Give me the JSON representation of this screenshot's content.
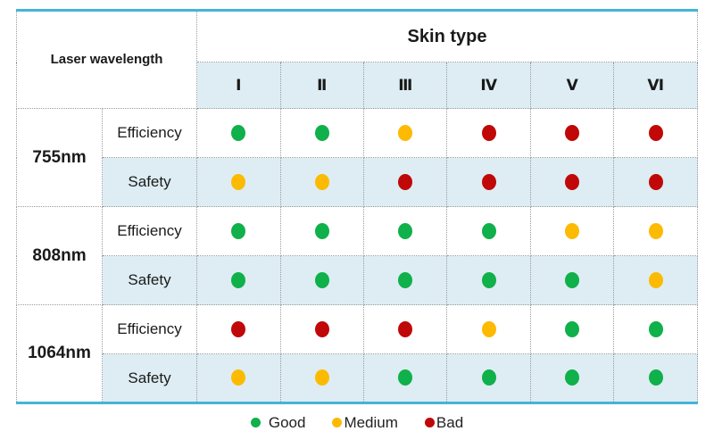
{
  "colors": {
    "good": "#10b04a",
    "medium": "#fcba02",
    "bad": "#c00808",
    "band_bg": "#ddedf3",
    "accent_border": "#45b4d6"
  },
  "chart_data": {
    "type": "table",
    "row_group_label": "Laser wavelength",
    "col_group_label": "Skin type",
    "columns": [
      "Ⅰ",
      "Ⅱ",
      "Ⅲ",
      "Ⅳ",
      "Ⅴ",
      "Ⅵ"
    ],
    "metric_labels": {
      "efficiency": "Efficiency",
      "safety": "Safety"
    },
    "groups": [
      {
        "wavelength": "755nm",
        "efficiency": [
          "good",
          "good",
          "medium",
          "bad",
          "bad",
          "bad"
        ],
        "safety": [
          "medium",
          "medium",
          "bad",
          "bad",
          "bad",
          "bad"
        ]
      },
      {
        "wavelength": "808nm",
        "efficiency": [
          "good",
          "good",
          "good",
          "good",
          "medium",
          "medium"
        ],
        "safety": [
          "good",
          "good",
          "good",
          "good",
          "good",
          "medium"
        ]
      },
      {
        "wavelength": "1064nm",
        "efficiency": [
          "bad",
          "bad",
          "bad",
          "medium",
          "good",
          "good"
        ],
        "safety": [
          "medium",
          "medium",
          "good",
          "good",
          "good",
          "good"
        ]
      }
    ],
    "legend": [
      {
        "label": "Good",
        "rating": "good"
      },
      {
        "label": "Medium",
        "rating": "medium"
      },
      {
        "label": "Bad",
        "rating": "bad"
      }
    ]
  }
}
